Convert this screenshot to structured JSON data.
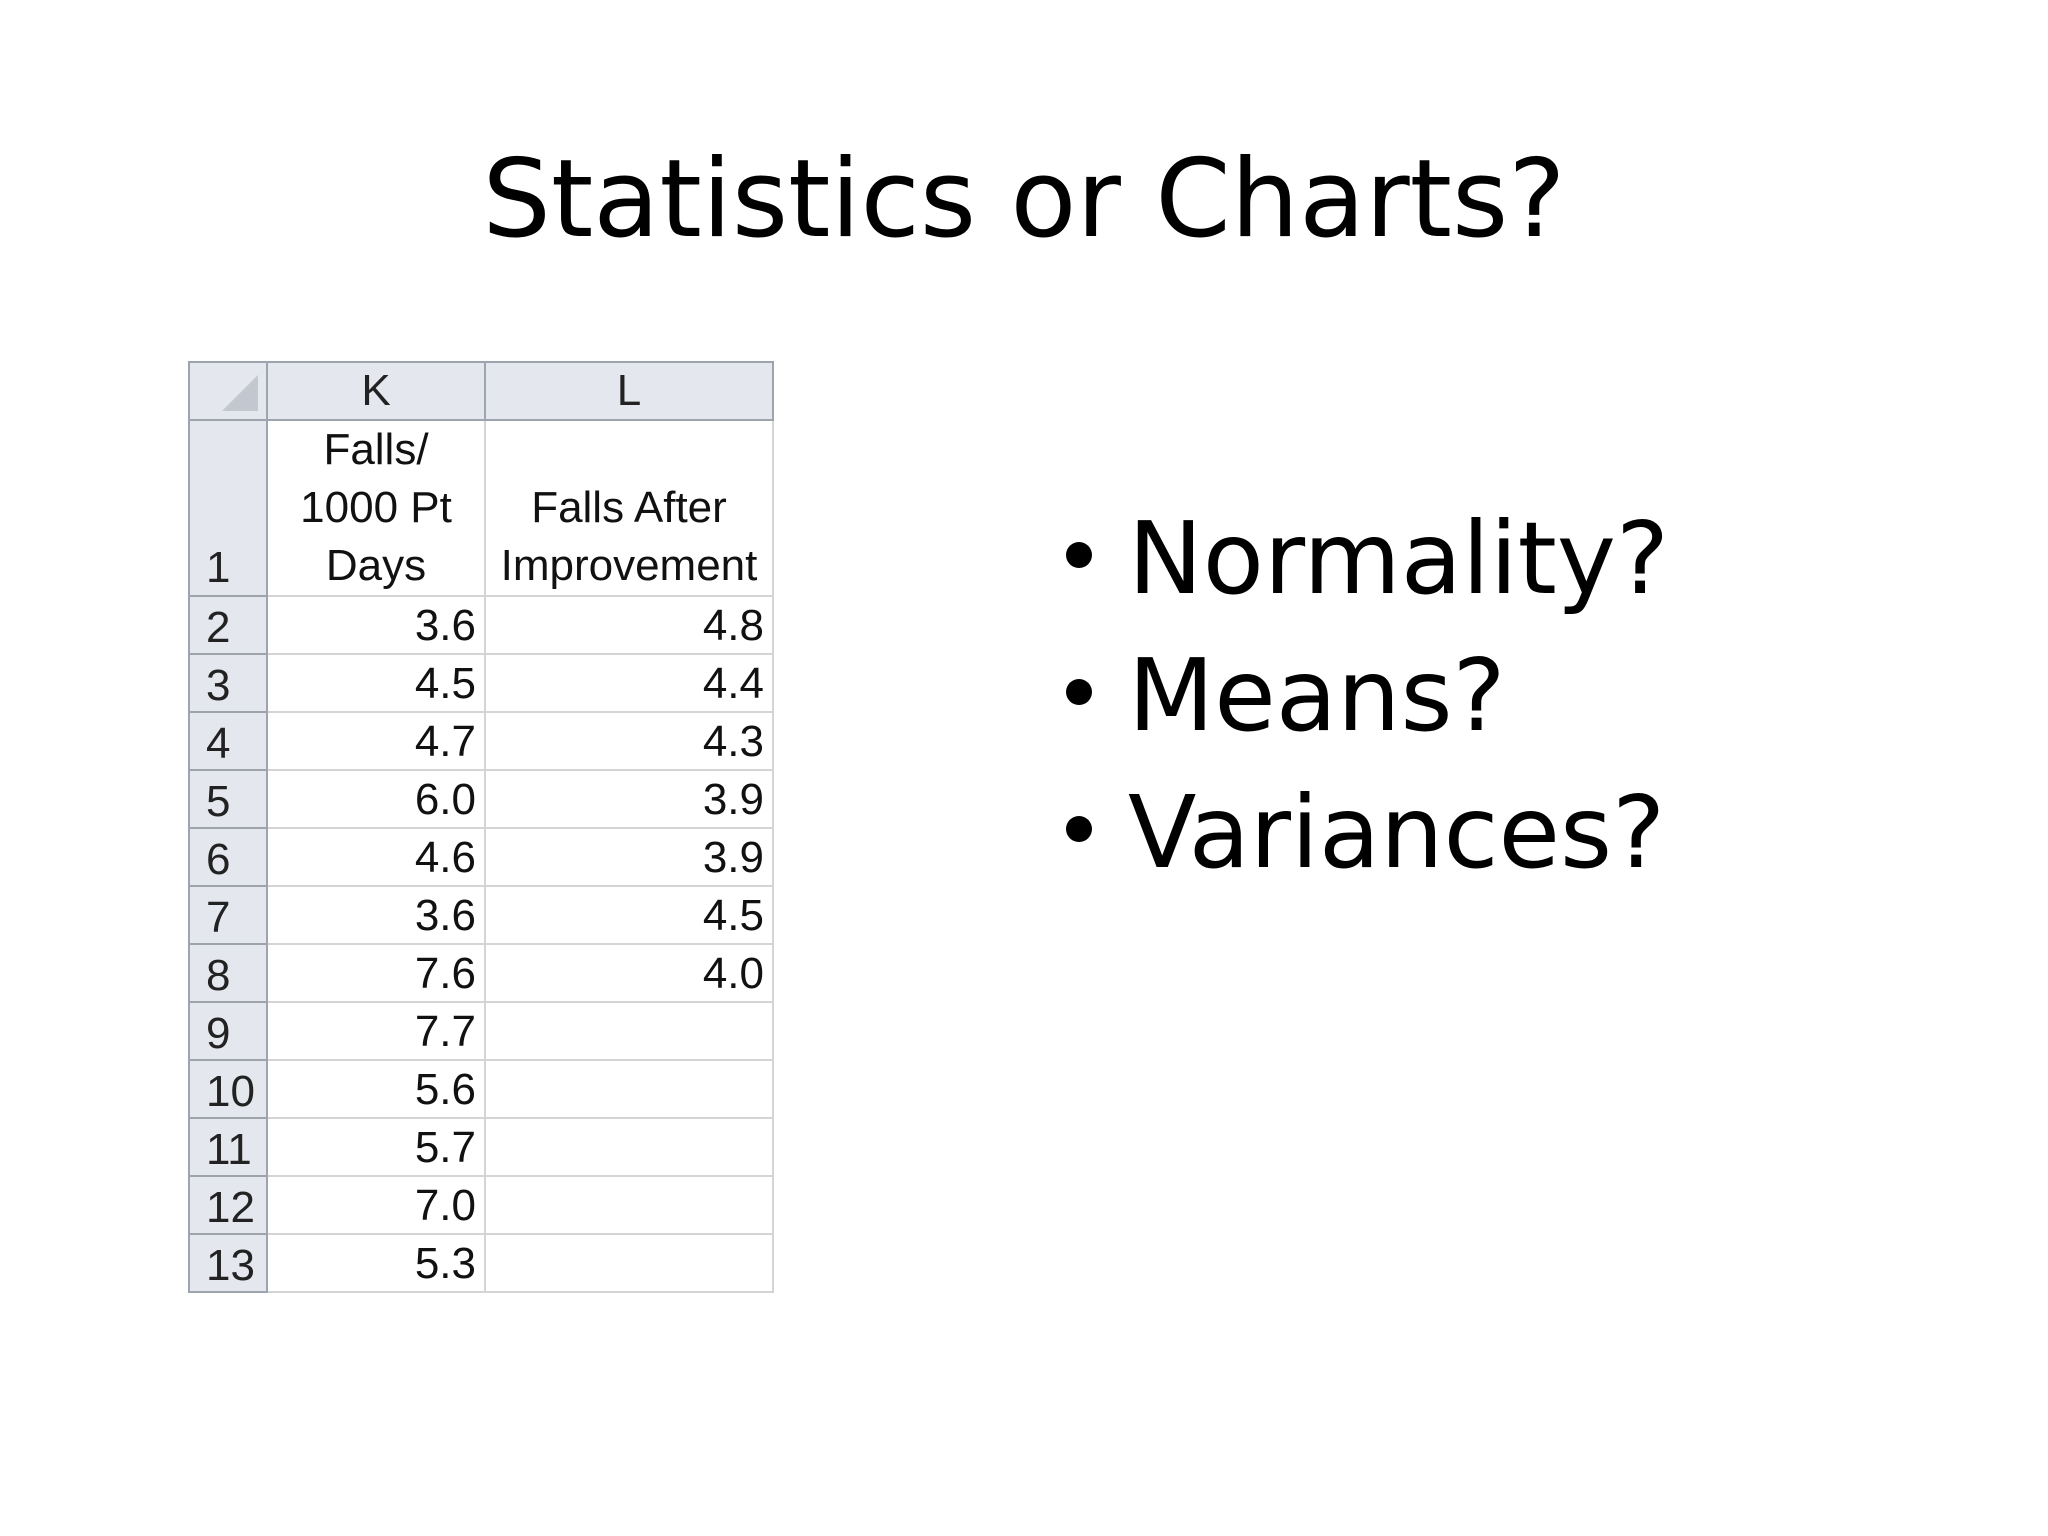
{
  "slide": {
    "title": "Statistics or Charts?"
  },
  "spreadsheet": {
    "column_letters": [
      "K",
      "L"
    ],
    "header_row_number": "1",
    "header_k_lines": [
      "Falls/",
      "1000 Pt",
      "Days"
    ],
    "header_l_lines": [
      "Falls After",
      "Improvement"
    ],
    "rows": [
      {
        "num": "2",
        "k": "3.6",
        "l": "4.8"
      },
      {
        "num": "3",
        "k": "4.5",
        "l": "4.4"
      },
      {
        "num": "4",
        "k": "4.7",
        "l": "4.3"
      },
      {
        "num": "5",
        "k": "6.0",
        "l": "3.9"
      },
      {
        "num": "6",
        "k": "4.6",
        "l": "3.9"
      },
      {
        "num": "7",
        "k": "3.6",
        "l": "4.5"
      },
      {
        "num": "8",
        "k": "7.6",
        "l": "4.0"
      },
      {
        "num": "9",
        "k": "7.7",
        "l": ""
      },
      {
        "num": "10",
        "k": "5.6",
        "l": ""
      },
      {
        "num": "11",
        "k": "5.7",
        "l": ""
      },
      {
        "num": "12",
        "k": "7.0",
        "l": ""
      },
      {
        "num": "13",
        "k": "5.3",
        "l": ""
      }
    ]
  },
  "bullets": [
    "Normality?",
    "Means?",
    "Variances?"
  ]
}
